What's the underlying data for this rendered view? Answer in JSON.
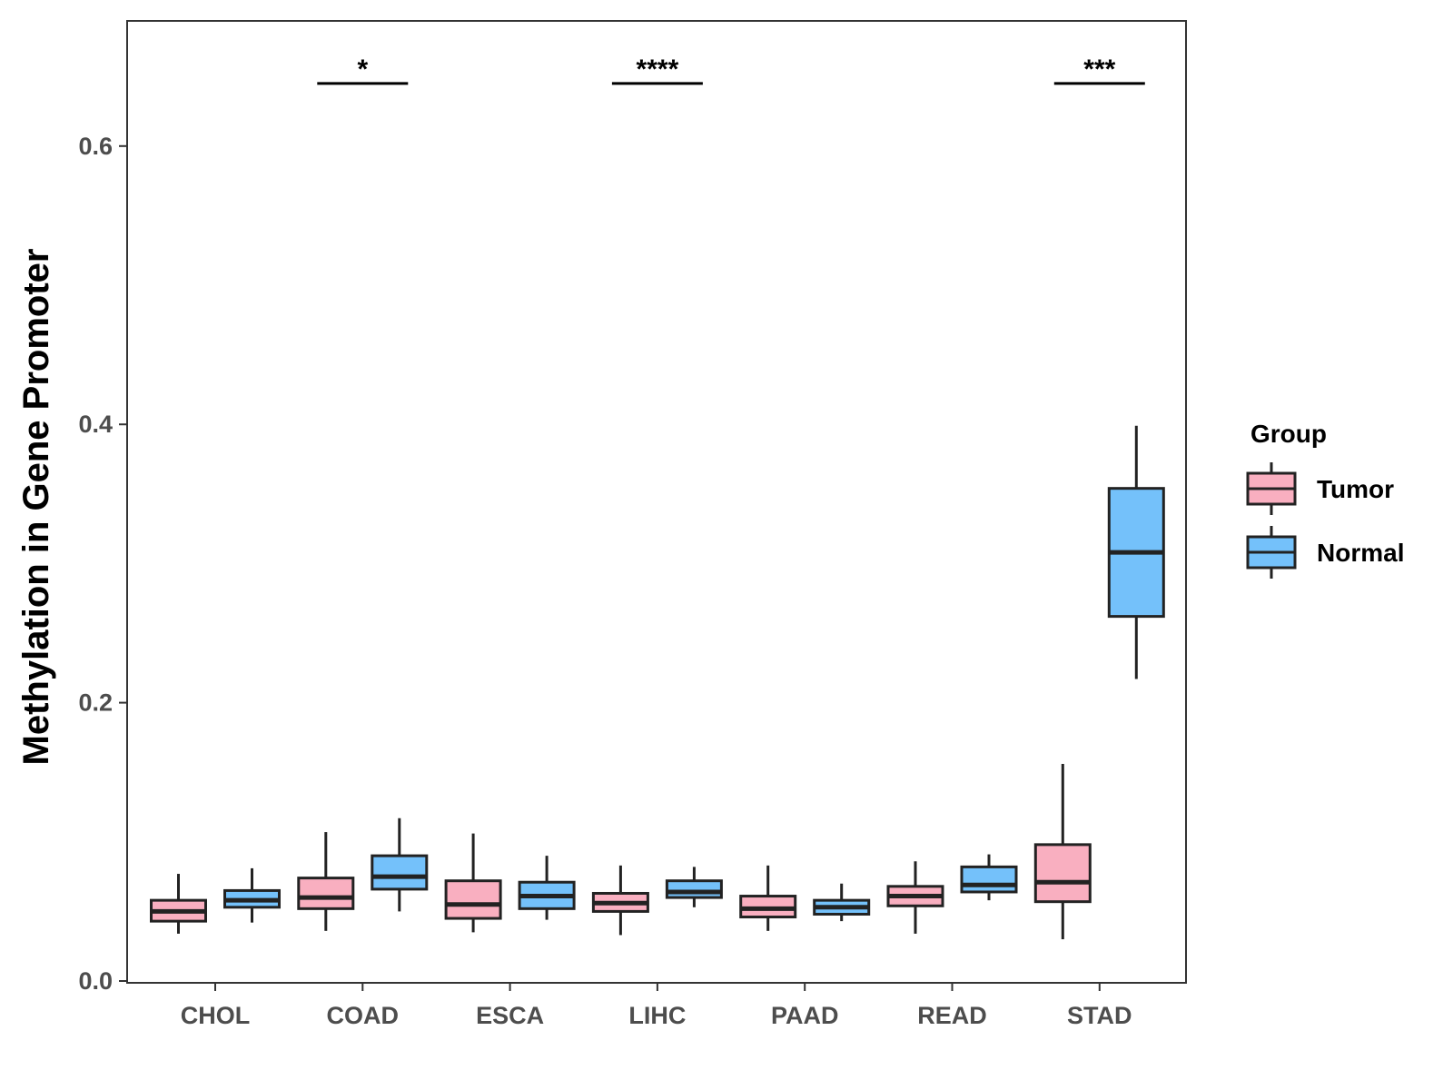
{
  "chart_data": {
    "type": "boxplot",
    "title": "",
    "xlabel": "",
    "ylabel": "Methylation in Gene Promoter",
    "ylim": [
      0,
      0.69
    ],
    "yticks": [
      0.0,
      0.2,
      0.4,
      0.6
    ],
    "ytick_labels": [
      "0.0",
      "0.2",
      "0.4",
      "0.6"
    ],
    "grid": false,
    "legend": {
      "title": "Group",
      "position": "right",
      "entries": [
        {
          "name": "Tumor",
          "color": "#F9AFC0"
        },
        {
          "name": "Normal",
          "color": "#74C1FA"
        }
      ]
    },
    "categories": [
      "CHOL",
      "COAD",
      "ESCA",
      "LIHC",
      "PAAD",
      "READ",
      "STAD"
    ],
    "series": [
      {
        "name": "Tumor",
        "color": "#F9AFC0",
        "boxes": [
          {
            "whisker_low": 0.034,
            "q1": 0.043,
            "median": 0.05,
            "q3": 0.058,
            "whisker_high": 0.077
          },
          {
            "whisker_low": 0.036,
            "q1": 0.052,
            "median": 0.06,
            "q3": 0.074,
            "whisker_high": 0.107
          },
          {
            "whisker_low": 0.035,
            "q1": 0.045,
            "median": 0.055,
            "q3": 0.072,
            "whisker_high": 0.106
          },
          {
            "whisker_low": 0.033,
            "q1": 0.05,
            "median": 0.056,
            "q3": 0.063,
            "whisker_high": 0.083
          },
          {
            "whisker_low": 0.036,
            "q1": 0.046,
            "median": 0.052,
            "q3": 0.061,
            "whisker_high": 0.083
          },
          {
            "whisker_low": 0.034,
            "q1": 0.054,
            "median": 0.061,
            "q3": 0.068,
            "whisker_high": 0.086
          },
          {
            "whisker_low": 0.03,
            "q1": 0.057,
            "median": 0.071,
            "q3": 0.098,
            "whisker_high": 0.156
          }
        ]
      },
      {
        "name": "Normal",
        "color": "#74C1FA",
        "boxes": [
          {
            "whisker_low": 0.042,
            "q1": 0.053,
            "median": 0.058,
            "q3": 0.065,
            "whisker_high": 0.081
          },
          {
            "whisker_low": 0.05,
            "q1": 0.066,
            "median": 0.075,
            "q3": 0.09,
            "whisker_high": 0.117
          },
          {
            "whisker_low": 0.044,
            "q1": 0.052,
            "median": 0.061,
            "q3": 0.071,
            "whisker_high": 0.09
          },
          {
            "whisker_low": 0.053,
            "q1": 0.06,
            "median": 0.064,
            "q3": 0.072,
            "whisker_high": 0.082
          },
          {
            "whisker_low": 0.043,
            "q1": 0.048,
            "median": 0.053,
            "q3": 0.058,
            "whisker_high": 0.07
          },
          {
            "whisker_low": 0.058,
            "q1": 0.064,
            "median": 0.069,
            "q3": 0.082,
            "whisker_high": 0.091
          },
          {
            "whisker_low": 0.217,
            "q1": 0.262,
            "median": 0.308,
            "q3": 0.354,
            "whisker_high": 0.399
          }
        ]
      }
    ],
    "annotations": [
      {
        "category": "COAD",
        "label": "*",
        "y": 0.645
      },
      {
        "category": "LIHC",
        "label": "****",
        "y": 0.645
      },
      {
        "category": "STAD",
        "label": "***",
        "y": 0.645
      }
    ]
  }
}
